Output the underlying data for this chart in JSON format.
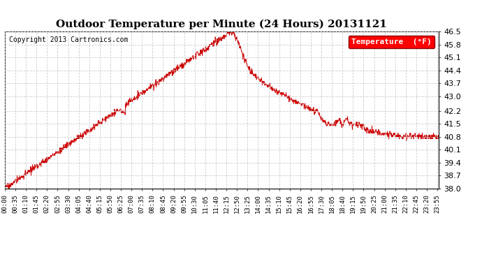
{
  "title": "Outdoor Temperature per Minute (24 Hours) 20131121",
  "copyright_text": "Copyright 2013 Cartronics.com",
  "legend_label": "Temperature  (°F)",
  "line_color": "#cc0000",
  "background_color": "#ffffff",
  "grid_color": "#c8c8c8",
  "ylim": [
    38.0,
    46.5
  ],
  "yticks": [
    38.0,
    38.7,
    39.4,
    40.1,
    40.8,
    41.5,
    42.2,
    43.0,
    43.7,
    44.4,
    45.1,
    45.8,
    46.5
  ],
  "xtick_interval_minutes": 35,
  "total_minutes": 1440,
  "title_fontsize": 11,
  "axis_fontsize": 6.5,
  "legend_fontsize": 8,
  "copyright_fontsize": 7
}
